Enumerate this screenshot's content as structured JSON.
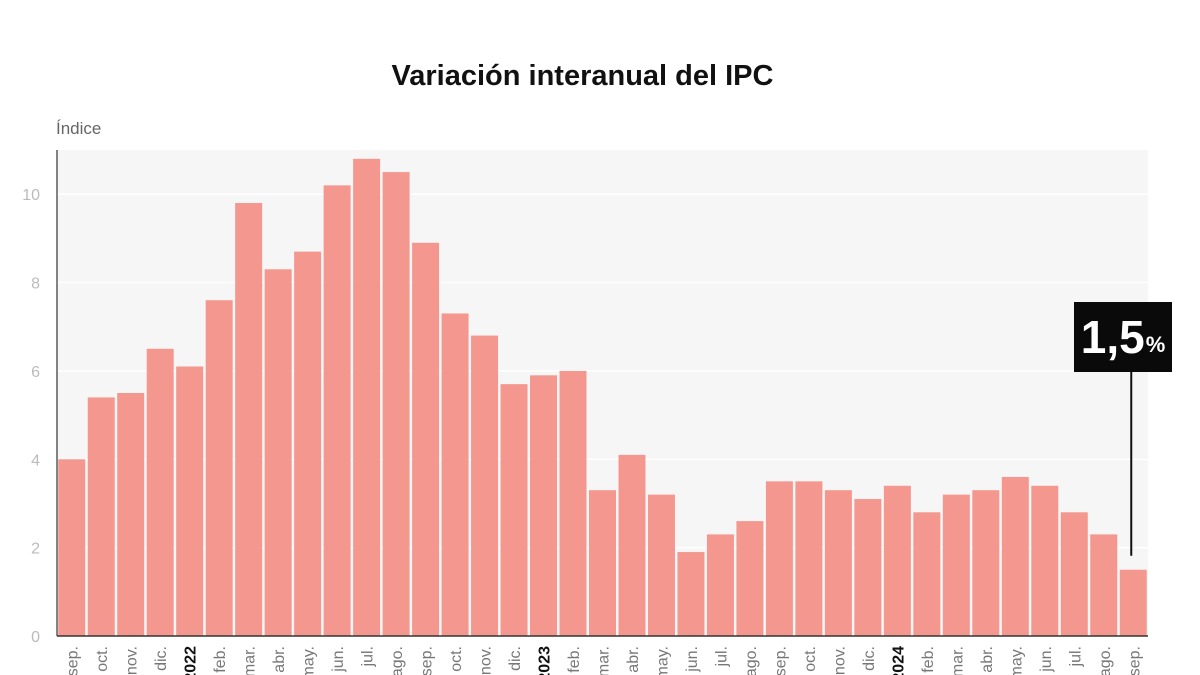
{
  "chart_data": {
    "type": "bar",
    "title": "Variación interanual del IPC",
    "ylabel": "Índice",
    "xlabel": "",
    "ylim": [
      0,
      11
    ],
    "yticks": [
      0,
      2,
      4,
      6,
      8,
      10
    ],
    "grid": true,
    "bar_color": "#f4978e",
    "categories": [
      "sep.",
      "oct.",
      "nov.",
      "dic.",
      "2022",
      "feb.",
      "mar.",
      "abr.",
      "may.",
      "jun.",
      "jul.",
      "ago.",
      "sep.",
      "oct.",
      "nov.",
      "dic.",
      "2023",
      "feb.",
      "mar.",
      "abr.",
      "may.",
      "jun.",
      "jul.",
      "ago.",
      "sep.",
      "oct.",
      "nov.",
      "dic.",
      "2024",
      "feb.",
      "mar.",
      "abr.",
      "may.",
      "jun.",
      "jul.",
      "ago.",
      "sep."
    ],
    "bold_categories": [
      "2022",
      "2023",
      "2024"
    ],
    "values": [
      4.0,
      5.4,
      5.5,
      6.5,
      6.1,
      7.6,
      9.8,
      8.3,
      8.7,
      10.2,
      10.8,
      10.5,
      8.9,
      7.3,
      6.8,
      5.7,
      5.9,
      6.0,
      3.3,
      4.1,
      3.2,
      1.9,
      2.3,
      2.6,
      3.5,
      3.5,
      3.3,
      3.1,
      3.4,
      2.8,
      3.2,
      3.3,
      3.6,
      3.4,
      2.8,
      2.3,
      1.5
    ],
    "annotation": {
      "category_index": 36,
      "value_text": "1,5",
      "unit_text": "%"
    }
  }
}
